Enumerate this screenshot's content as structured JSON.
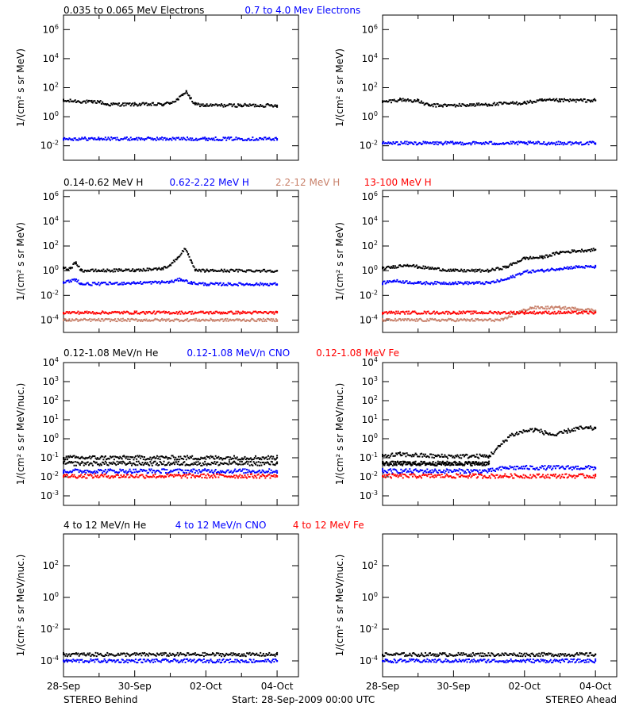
{
  "colors": {
    "black": "#000000",
    "blue": "#0000ff",
    "tan": "#c8806a",
    "red": "#ff0000",
    "background": "#ffffff"
  },
  "footer": {
    "left": "STEREO Behind",
    "center": "Start: 28-Sep-2009 00:00 UTC",
    "right": "STEREO Ahead"
  },
  "x_ticks": [
    "28-Sep",
    "30-Sep",
    "02-Oct",
    "04-Oct"
  ],
  "chart_data": [
    {
      "id": "electrons",
      "type": "scatter",
      "legend": [
        {
          "label": "0.035 to 0.065 MeV Electrons",
          "color": "#000000"
        },
        {
          "label": "0.7 to 4.0 Mev Electrons",
          "color": "#0000ff"
        }
      ],
      "ylabel": "1/(cm² s sr MeV)",
      "ylim_log10": [
        -3,
        7
      ],
      "y_ticks": [
        "10^-2",
        "10^0",
        "10^2",
        "10^4",
        "10^6"
      ],
      "x_days": [
        0,
        6
      ],
      "behind": [
        {
          "name": "0.035 to 0.065 MeV Electrons",
          "color": "#000000",
          "x": [
            0,
            0.3,
            0.8,
            1.0,
            1.2,
            2.0,
            2.8,
            3.0,
            3.2,
            3.35,
            3.45,
            3.55,
            3.7,
            4.0,
            5.0,
            6.0
          ],
          "y": [
            12,
            12,
            10,
            11,
            7,
            7,
            7,
            9,
            15,
            30,
            60,
            20,
            7,
            6,
            6,
            6
          ]
        },
        {
          "name": "0.7 to 4.0 Mev Electrons",
          "color": "#0000ff",
          "x": [
            0,
            1,
            2,
            3,
            4,
            5,
            6
          ],
          "y": [
            0.03,
            0.03,
            0.03,
            0.03,
            0.03,
            0.03,
            0.03
          ]
        }
      ],
      "ahead": [
        {
          "name": "0.035 to 0.065 MeV Electrons",
          "color": "#000000",
          "x": [
            0,
            0.5,
            1.0,
            1.3,
            2.0,
            3.0,
            4.0,
            4.5,
            5.0,
            6.0
          ],
          "y": [
            10,
            15,
            12,
            6,
            6,
            7,
            9,
            13,
            13,
            13
          ]
        },
        {
          "name": "0.7 to 4.0 Mev Electrons",
          "color": "#0000ff",
          "x": [
            0,
            2,
            4,
            6
          ],
          "y": [
            0.015,
            0.015,
            0.015,
            0.015
          ]
        }
      ]
    },
    {
      "id": "protons",
      "type": "scatter",
      "legend": [
        {
          "label": "0.14-0.62 MeV H",
          "color": "#000000"
        },
        {
          "label": "0.62-2.22 MeV H",
          "color": "#0000ff"
        },
        {
          "label": "2.2-12 MeV H",
          "color": "#c8806a"
        },
        {
          "label": "13-100 MeV H",
          "color": "#ff0000"
        }
      ],
      "ylabel": "1/(cm² s sr MeV)",
      "ylim_log10": [
        -5,
        6.5
      ],
      "y_ticks": [
        "10^-4",
        "10^-2",
        "10^0",
        "10^2",
        "10^4",
        "10^6"
      ],
      "x_days": [
        0,
        6
      ],
      "behind": [
        {
          "name": "0.14-0.62 MeV H",
          "color": "#000000",
          "x": [
            0,
            0.2,
            0.35,
            0.5,
            1.0,
            2.0,
            2.8,
            3.0,
            3.2,
            3.4,
            3.5,
            3.6,
            3.7,
            4.0,
            6.0
          ],
          "y": [
            1.5,
            1.5,
            5,
            1,
            1,
            1.1,
            1.5,
            3,
            10,
            60,
            20,
            5,
            1,
            1,
            1
          ]
        },
        {
          "name": "0.62-2.22 MeV H",
          "color": "#0000ff",
          "x": [
            0,
            0.35,
            0.5,
            2.0,
            3.0,
            3.3,
            3.6,
            4.0,
            6.0
          ],
          "y": [
            0.1,
            0.2,
            0.08,
            0.1,
            0.12,
            0.2,
            0.1,
            0.08,
            0.08
          ]
        },
        {
          "name": "2.2-12 MeV H",
          "color": "#c8806a",
          "x": [
            0,
            6
          ],
          "y": [
            0.0001,
            0.0001
          ]
        },
        {
          "name": "13-100 MeV H",
          "color": "#ff0000",
          "x": [
            0,
            2,
            4,
            6
          ],
          "y": [
            0.0004,
            0.0004,
            0.0004,
            0.0004
          ]
        }
      ],
      "ahead": [
        {
          "name": "0.14-0.62 MeV H",
          "color": "#000000",
          "x": [
            0,
            0.3,
            0.7,
            1.0,
            2.0,
            3.0,
            3.5,
            4.0,
            4.5,
            5.0,
            5.5,
            6.0
          ],
          "y": [
            1.5,
            2,
            3,
            2,
            1,
            1,
            2,
            10,
            12,
            30,
            40,
            50
          ]
        },
        {
          "name": "0.62-2.22 MeV H",
          "color": "#0000ff",
          "x": [
            0,
            0.3,
            1.0,
            2.0,
            3.0,
            3.5,
            4.0,
            4.5,
            5.0,
            5.5,
            6.0
          ],
          "y": [
            0.1,
            0.15,
            0.1,
            0.1,
            0.1,
            0.2,
            0.8,
            1.0,
            1.5,
            2.0,
            2.0
          ]
        },
        {
          "name": "2.2-12 MeV H",
          "color": "#c8806a",
          "x": [
            0,
            3.4,
            3.8,
            4.2,
            5.0,
            5.5,
            6.0
          ],
          "y": [
            0.0001,
            0.0001,
            0.0004,
            0.001,
            0.001,
            0.0008,
            0.0006
          ]
        },
        {
          "name": "13-100 MeV H",
          "color": "#ff0000",
          "x": [
            0,
            2,
            4,
            6
          ],
          "y": [
            0.0004,
            0.0004,
            0.0004,
            0.0004
          ]
        }
      ]
    },
    {
      "id": "low_energy_ions",
      "type": "scatter",
      "legend": [
        {
          "label": "0.12-1.08 MeV/n He",
          "color": "#000000"
        },
        {
          "label": "0.12-1.08 MeV/n CNO",
          "color": "#0000ff"
        },
        {
          "label": "0.12-1.08 MeV Fe",
          "color": "#ff0000"
        }
      ],
      "ylabel": "1/(cm² s sr MeV/nuc.)",
      "ylim_log10": [
        -3.5,
        4
      ],
      "y_ticks": [
        "10^-3",
        "10^-2",
        "10^-1",
        "10^0",
        "10^1",
        "10^2",
        "10^3",
        "10^4"
      ],
      "x_days": [
        0,
        6
      ],
      "behind": [
        {
          "name": "0.12-1.08 MeV/n He",
          "color": "#000000",
          "x": [
            0,
            6
          ],
          "y": [
            0.05,
            0.05
          ]
        },
        {
          "name": "0.12-1.08 MeV/n He",
          "color": "#000000",
          "x": [
            0,
            6
          ],
          "y": [
            0.1,
            0.1
          ]
        },
        {
          "name": "0.12-1.08 MeV/n CNO",
          "color": "#0000ff",
          "x": [
            0,
            6
          ],
          "y": [
            0.02,
            0.02
          ]
        },
        {
          "name": "0.12-1.08 MeV Fe",
          "color": "#ff0000",
          "x": [
            0,
            6
          ],
          "y": [
            0.011,
            0.011
          ]
        }
      ],
      "ahead": [
        {
          "name": "0.12-1.08 MeV/n He",
          "color": "#000000",
          "x": [
            0,
            3.0
          ],
          "y": [
            0.05,
            0.05
          ]
        },
        {
          "name": "0.12-1.08 MeV/n He",
          "color": "#000000",
          "x": [
            0,
            0.5,
            1.5,
            2.5,
            3.0,
            3.3,
            3.6,
            4.0,
            4.3,
            4.6,
            4.9,
            5.2,
            5.5,
            5.8,
            6.0
          ],
          "y": [
            0.12,
            0.15,
            0.12,
            0.12,
            0.12,
            0.4,
            1.5,
            2.5,
            3,
            2,
            1.5,
            2.5,
            3.5,
            3.5,
            3.5
          ]
        },
        {
          "name": "0.12-1.08 MeV/n CNO",
          "color": "#0000ff",
          "x": [
            0,
            3.0,
            3.5,
            6.0
          ],
          "y": [
            0.02,
            0.02,
            0.03,
            0.03
          ]
        },
        {
          "name": "0.12-1.08 MeV Fe",
          "color": "#ff0000",
          "x": [
            0,
            6
          ],
          "y": [
            0.011,
            0.011
          ]
        }
      ]
    },
    {
      "id": "high_energy_ions",
      "type": "scatter",
      "legend": [
        {
          "label": "4 to 12 MeV/n He",
          "color": "#000000"
        },
        {
          "label": "4 to 12 MeV/n CNO",
          "color": "#0000ff"
        },
        {
          "label": "4 to 12 MeV Fe",
          "color": "#ff0000"
        }
      ],
      "ylabel": "1/(cm² s sr MeV/nuc.)",
      "ylim_log10": [
        -5,
        4
      ],
      "y_ticks": [
        "10^-4",
        "10^-2",
        "10^0",
        "10^2"
      ],
      "x_days": [
        0,
        6
      ],
      "behind": [
        {
          "name": "4 to 12 MeV/n He",
          "color": "#000000",
          "x": [
            0,
            6
          ],
          "y": [
            0.00025,
            0.00025
          ]
        },
        {
          "name": "4 to 12 MeV/n CNO",
          "color": "#0000ff",
          "x": [
            0,
            6
          ],
          "y": [
            0.0001,
            0.0001
          ]
        }
      ],
      "ahead": [
        {
          "name": "4 to 12 MeV/n He",
          "color": "#000000",
          "x": [
            0,
            6
          ],
          "y": [
            0.00025,
            0.00025
          ]
        },
        {
          "name": "4 to 12 MeV/n CNO",
          "color": "#0000ff",
          "x": [
            0,
            6
          ],
          "y": [
            0.0001,
            0.0001
          ]
        }
      ]
    }
  ]
}
